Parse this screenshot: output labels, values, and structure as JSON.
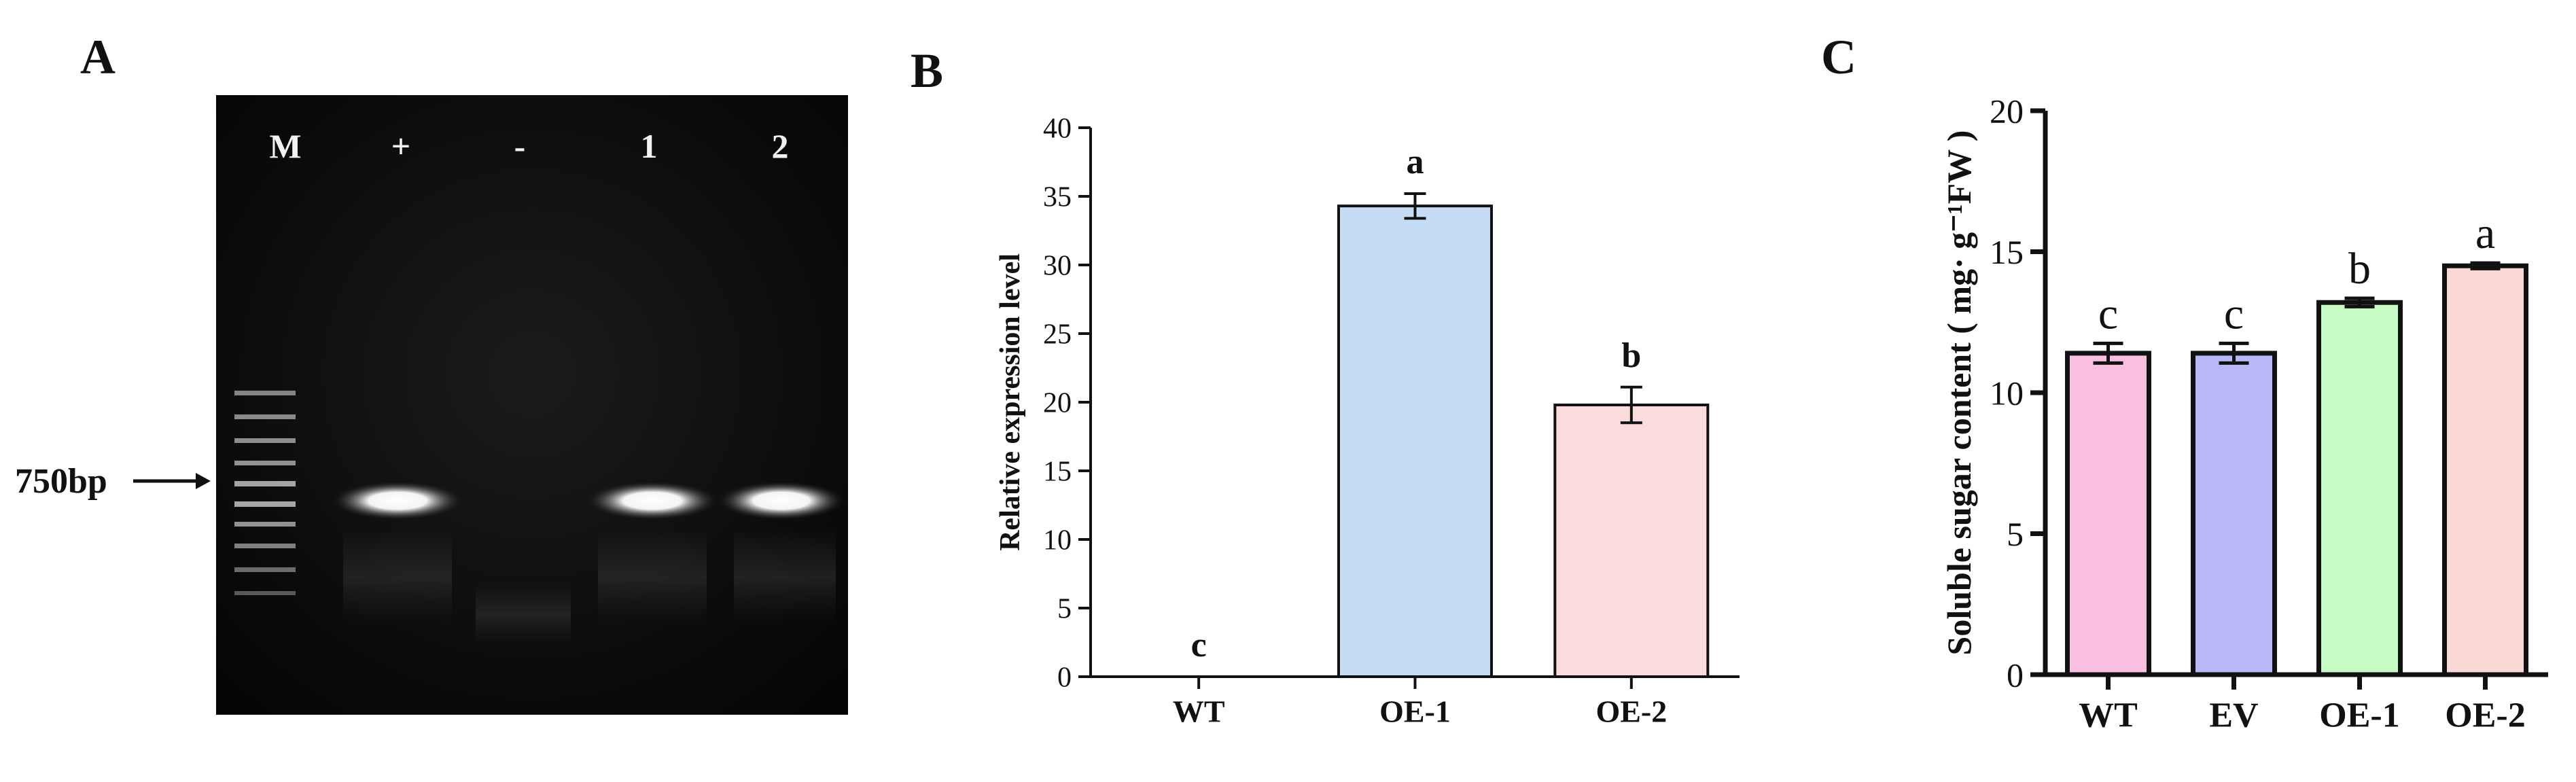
{
  "panels": {
    "A": {
      "letter": "A"
    },
    "B": {
      "letter": "B"
    },
    "C": {
      "letter": "C"
    }
  },
  "gel": {
    "lane_labels": [
      "M",
      "+",
      "-",
      "1",
      "2"
    ],
    "size_marker": "750bp",
    "bands_present": [
      true,
      false,
      true,
      true
    ]
  },
  "chart_data": [
    {
      "panel": "B",
      "type": "bar",
      "categories": [
        "WT",
        "OE-1",
        "OE-2"
      ],
      "values": [
        0,
        34.3,
        19.8
      ],
      "errors": [
        0,
        0.9,
        1.3
      ],
      "significance": [
        "c",
        "a",
        "b"
      ],
      "colors": [
        "#ffffff",
        "#c6dcf4",
        "#fadcdc"
      ],
      "title": "",
      "xlabel": "",
      "ylabel": "Relative expression level",
      "ylim": [
        0,
        40
      ],
      "yticks": [
        0,
        5,
        10,
        15,
        20,
        25,
        30,
        35,
        40
      ],
      "ytick_labels": [
        "0",
        "5",
        "10",
        "15",
        "20",
        "25",
        "30",
        "35",
        "40"
      ]
    },
    {
      "panel": "C",
      "type": "bar",
      "categories": [
        "WT",
        "EV",
        "OE-1",
        "OE-2"
      ],
      "values": [
        11.4,
        11.4,
        13.2,
        14.5
      ],
      "errors": [
        0.35,
        0.35,
        0.15,
        0.1
      ],
      "significance": [
        "c",
        "c",
        "b",
        "a"
      ],
      "colors": [
        "#f9bfe1",
        "#b8b8f8",
        "#c6fbc6",
        "#fad8d6"
      ],
      "title": "",
      "xlabel": "",
      "ylabel": "Soluble sugar content ( mg· g⁻¹FW )",
      "ylim": [
        0,
        20
      ],
      "yticks": [
        0,
        5,
        10,
        15,
        20
      ],
      "ytick_labels": [
        "0",
        "5",
        "10",
        "15",
        "20"
      ]
    }
  ]
}
